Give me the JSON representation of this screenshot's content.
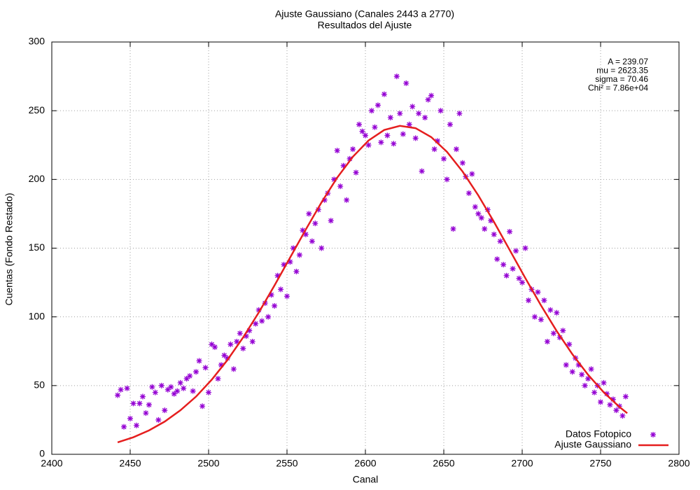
{
  "chart_data": {
    "type": "scatter",
    "title": "Ajuste Gaussiano (Canales 2443 a 2770)",
    "subtitle": "Resultados del Ajuste",
    "xlabel": "Canal",
    "ylabel": "Cuentas (Fondo Restado)",
    "xlim": [
      2400,
      2800
    ],
    "ylim": [
      0,
      300
    ],
    "xticks": [
      2400,
      2450,
      2500,
      2550,
      2600,
      2650,
      2700,
      2750,
      2800
    ],
    "yticks": [
      0,
      50,
      100,
      150,
      200,
      250,
      300
    ],
    "grid": true,
    "legend": "bottom right",
    "annotations": [
      "A = 239.07",
      "mu = 2623.35",
      "sigma = 70.46",
      "Chi² = 7.86e+04"
    ],
    "series": [
      {
        "name": "Datos Fotopico",
        "type": "scatter",
        "color": "#9400d3",
        "x": [
          2442,
          2444,
          2446,
          2448,
          2450,
          2452,
          2454,
          2456,
          2458,
          2460,
          2462,
          2464,
          2466,
          2468,
          2470,
          2472,
          2474,
          2476,
          2478,
          2480,
          2482,
          2484,
          2486,
          2488,
          2490,
          2492,
          2494,
          2496,
          2498,
          2500,
          2502,
          2504,
          2506,
          2508,
          2510,
          2512,
          2514,
          2516,
          2518,
          2520,
          2522,
          2524,
          2526,
          2528,
          2530,
          2532,
          2534,
          2536,
          2538,
          2540,
          2542,
          2544,
          2546,
          2548,
          2550,
          2552,
          2554,
          2556,
          2558,
          2560,
          2562,
          2564,
          2566,
          2568,
          2570,
          2572,
          2574,
          2576,
          2578,
          2580,
          2582,
          2584,
          2586,
          2588,
          2590,
          2592,
          2594,
          2596,
          2598,
          2600,
          2602,
          2604,
          2606,
          2608,
          2610,
          2612,
          2614,
          2616,
          2618,
          2620,
          2622,
          2624,
          2626,
          2628,
          2630,
          2632,
          2634,
          2636,
          2638,
          2640,
          2642,
          2644,
          2646,
          2648,
          2650,
          2652,
          2654,
          2656,
          2658,
          2660,
          2662,
          2664,
          2666,
          2668,
          2670,
          2672,
          2674,
          2676,
          2678,
          2680,
          2682,
          2684,
          2686,
          2688,
          2690,
          2692,
          2694,
          2696,
          2698,
          2700,
          2702,
          2704,
          2706,
          2708,
          2710,
          2712,
          2714,
          2716,
          2718,
          2720,
          2722,
          2724,
          2726,
          2728,
          2730,
          2732,
          2734,
          2736,
          2738,
          2740,
          2742,
          2744,
          2746,
          2748,
          2750,
          2752,
          2754,
          2756,
          2758,
          2760,
          2762,
          2764,
          2766
        ],
        "values": [
          43,
          47,
          20,
          48,
          26,
          37,
          21,
          37,
          42,
          30,
          36,
          49,
          45,
          25,
          50,
          32,
          47,
          49,
          44,
          46,
          52,
          48,
          55,
          57,
          46,
          60,
          68,
          35,
          63,
          45,
          80,
          78,
          55,
          65,
          72,
          70,
          80,
          62,
          82,
          88,
          77,
          86,
          90,
          82,
          95,
          105,
          97,
          110,
          100,
          116,
          108,
          130,
          120,
          138,
          115,
          140,
          150,
          133,
          145,
          163,
          160,
          175,
          155,
          168,
          178,
          150,
          185,
          190,
          170,
          200,
          221,
          195,
          210,
          185,
          215,
          222,
          205,
          240,
          235,
          232,
          225,
          250,
          238,
          254,
          227,
          262,
          232,
          245,
          226,
          275,
          248,
          233,
          270,
          240,
          253,
          230,
          248,
          206,
          245,
          258,
          261,
          222,
          228,
          250,
          215,
          200,
          240,
          164,
          222,
          248,
          212,
          202,
          190,
          204,
          180,
          175,
          172,
          164,
          178,
          170,
          160,
          142,
          155,
          138,
          130,
          162,
          135,
          148,
          128,
          125,
          150,
          112,
          120,
          100,
          118,
          98,
          112,
          82,
          105,
          88,
          103,
          85,
          90,
          65,
          80,
          60,
          70,
          65,
          58,
          50,
          55,
          62,
          45,
          50,
          38,
          52,
          44,
          36,
          40,
          32,
          35,
          28,
          42
        ]
      },
      {
        "name": "Ajuste Gaussiano",
        "type": "line",
        "color": "#e51e1e",
        "x": [
          2442,
          2452,
          2462,
          2472,
          2482,
          2492,
          2502,
          2512,
          2522,
          2532,
          2542,
          2552,
          2562,
          2572,
          2582,
          2592,
          2602,
          2612,
          2622,
          2632,
          2642,
          2652,
          2662,
          2672,
          2682,
          2692,
          2702,
          2712,
          2722,
          2732,
          2742,
          2752,
          2762,
          2767
        ],
        "values": [
          8.7,
          12.4,
          17.4,
          23.8,
          32.0,
          42.0,
          54.3,
          68.6,
          85.0,
          103.2,
          122.8,
          143.2,
          163.6,
          183.3,
          201.3,
          216.5,
          228.3,
          236.0,
          239.0,
          237.3,
          230.8,
          220.1,
          205.7,
          188.4,
          169.1,
          148.7,
          128.2,
          108.3,
          89.7,
          72.8,
          57.9,
          45.1,
          34.5,
          29.9
        ]
      }
    ]
  }
}
